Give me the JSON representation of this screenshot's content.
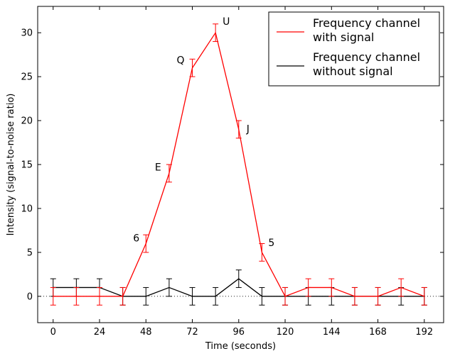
{
  "chart_data": {
    "type": "line",
    "xlabel": "Time (seconds)",
    "ylabel": "Intensity (signal-to-noise ratio)",
    "xlim": [
      -8,
      202
    ],
    "ylim": [
      -3,
      33
    ],
    "xticks": [
      0,
      24,
      48,
      72,
      96,
      120,
      144,
      168,
      192
    ],
    "yticks": [
      0,
      5,
      10,
      15,
      20,
      25,
      30
    ],
    "zero_line": "dotted",
    "legend_position": "top-right",
    "series": [
      {
        "name_lines": [
          "Frequency channel",
          "with signal"
        ],
        "color": "#ff0000",
        "x": [
          0,
          12,
          24,
          36,
          48,
          60,
          72,
          84,
          96,
          108,
          120,
          132,
          144,
          156,
          168,
          180,
          192
        ],
        "y": [
          0,
          0,
          0,
          0,
          6,
          14,
          26,
          30,
          19,
          5,
          0,
          1,
          1,
          0,
          0,
          1,
          0
        ],
        "err": [
          1,
          1,
          1,
          1,
          1,
          1,
          1,
          1,
          1,
          1,
          1,
          1,
          1,
          1,
          1,
          1,
          1
        ]
      },
      {
        "name_lines": [
          "Frequency channel",
          "without signal"
        ],
        "color": "#000000",
        "x": [
          0,
          12,
          24,
          36,
          48,
          60,
          72,
          84,
          96,
          108,
          120,
          132,
          144,
          156,
          168,
          180,
          192
        ],
        "y": [
          1,
          1,
          1,
          0,
          0,
          1,
          0,
          0,
          2,
          0,
          0,
          0,
          0,
          0,
          0,
          0,
          0
        ],
        "err": [
          1,
          1,
          1,
          1,
          1,
          1,
          1,
          1,
          1,
          1,
          1,
          1,
          1,
          1,
          1,
          1,
          1
        ]
      }
    ],
    "annotations": [
      {
        "text": "6",
        "x": 48,
        "y": 6
      },
      {
        "text": "E",
        "x": 60,
        "y": 14
      },
      {
        "text": "Q",
        "x": 72,
        "y": 26
      },
      {
        "text": "U",
        "x": 84,
        "y": 30
      },
      {
        "text": "J",
        "x": 96,
        "y": 19
      },
      {
        "text": "5",
        "x": 108,
        "y": 5
      }
    ]
  }
}
